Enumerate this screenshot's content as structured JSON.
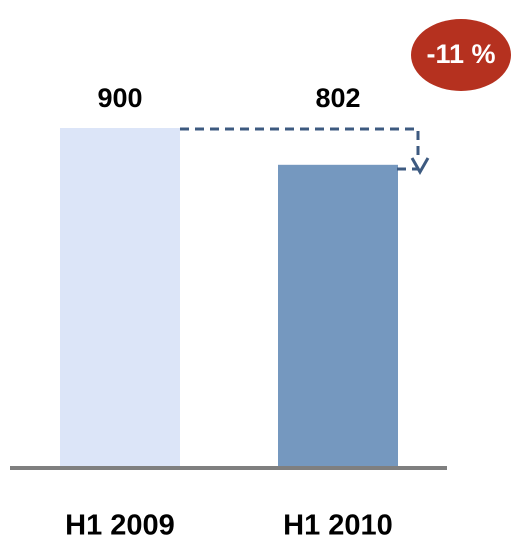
{
  "chart_data": {
    "type": "bar",
    "categories": [
      "H1 2009",
      "H1 2010"
    ],
    "values": [
      900,
      802
    ],
    "colors": [
      "#dce5f8",
      "#7598bf"
    ],
    "annotation": "-11 %"
  }
}
